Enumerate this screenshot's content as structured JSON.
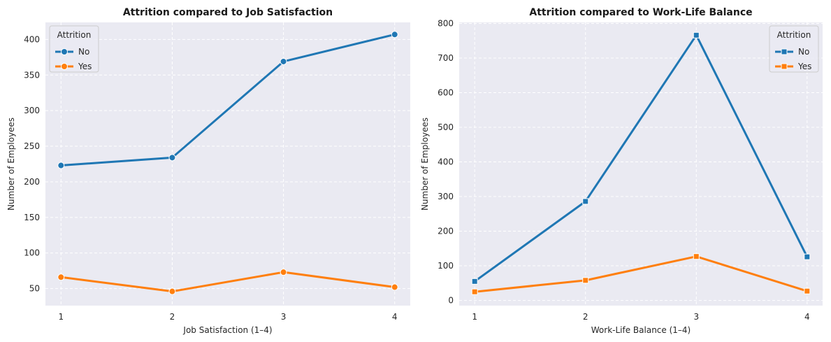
{
  "chart_data": [
    {
      "type": "line",
      "title": "Attrition compared to Job Satisfaction",
      "xlabel": "Job Satisfaction (1–4)",
      "ylabel": "Number of Employees",
      "x": [
        1,
        2,
        3,
        4
      ],
      "xticks": [
        "1",
        "2",
        "3",
        "4"
      ],
      "xlim": [
        0.86,
        4.14
      ],
      "ylim": [
        26,
        424
      ],
      "yticks": [
        50,
        100,
        150,
        200,
        250,
        300,
        350,
        400
      ],
      "grid": true,
      "marker": "circle",
      "legend": {
        "title": "Attrition",
        "placement": "top-left"
      },
      "series": [
        {
          "name": "No",
          "values": [
            223,
            234,
            369,
            407
          ],
          "color": "#1f77b4"
        },
        {
          "name": "Yes",
          "values": [
            66,
            46,
            73,
            52
          ],
          "color": "#ff7f0e"
        }
      ]
    },
    {
      "type": "line",
      "title": "Attrition compared to  Work-Life Balance",
      "xlabel": "Work-Life Balance (1–4)",
      "ylabel": "Number of Employees",
      "x": [
        1,
        2,
        3,
        4
      ],
      "xticks": [
        "1",
        "2",
        "3",
        "4"
      ],
      "xlim": [
        0.86,
        4.14
      ],
      "ylim": [
        -15,
        803
      ],
      "yticks": [
        0,
        100,
        200,
        300,
        400,
        500,
        600,
        700,
        800
      ],
      "grid": true,
      "marker": "square",
      "legend": {
        "title": "Attrition",
        "placement": "top-right"
      },
      "series": [
        {
          "name": "No",
          "values": [
            55,
            286,
            766,
            126
          ],
          "color": "#1f77b4"
        },
        {
          "name": "Yes",
          "values": [
            25,
            58,
            127,
            27
          ],
          "color": "#ff7f0e"
        }
      ]
    }
  ]
}
